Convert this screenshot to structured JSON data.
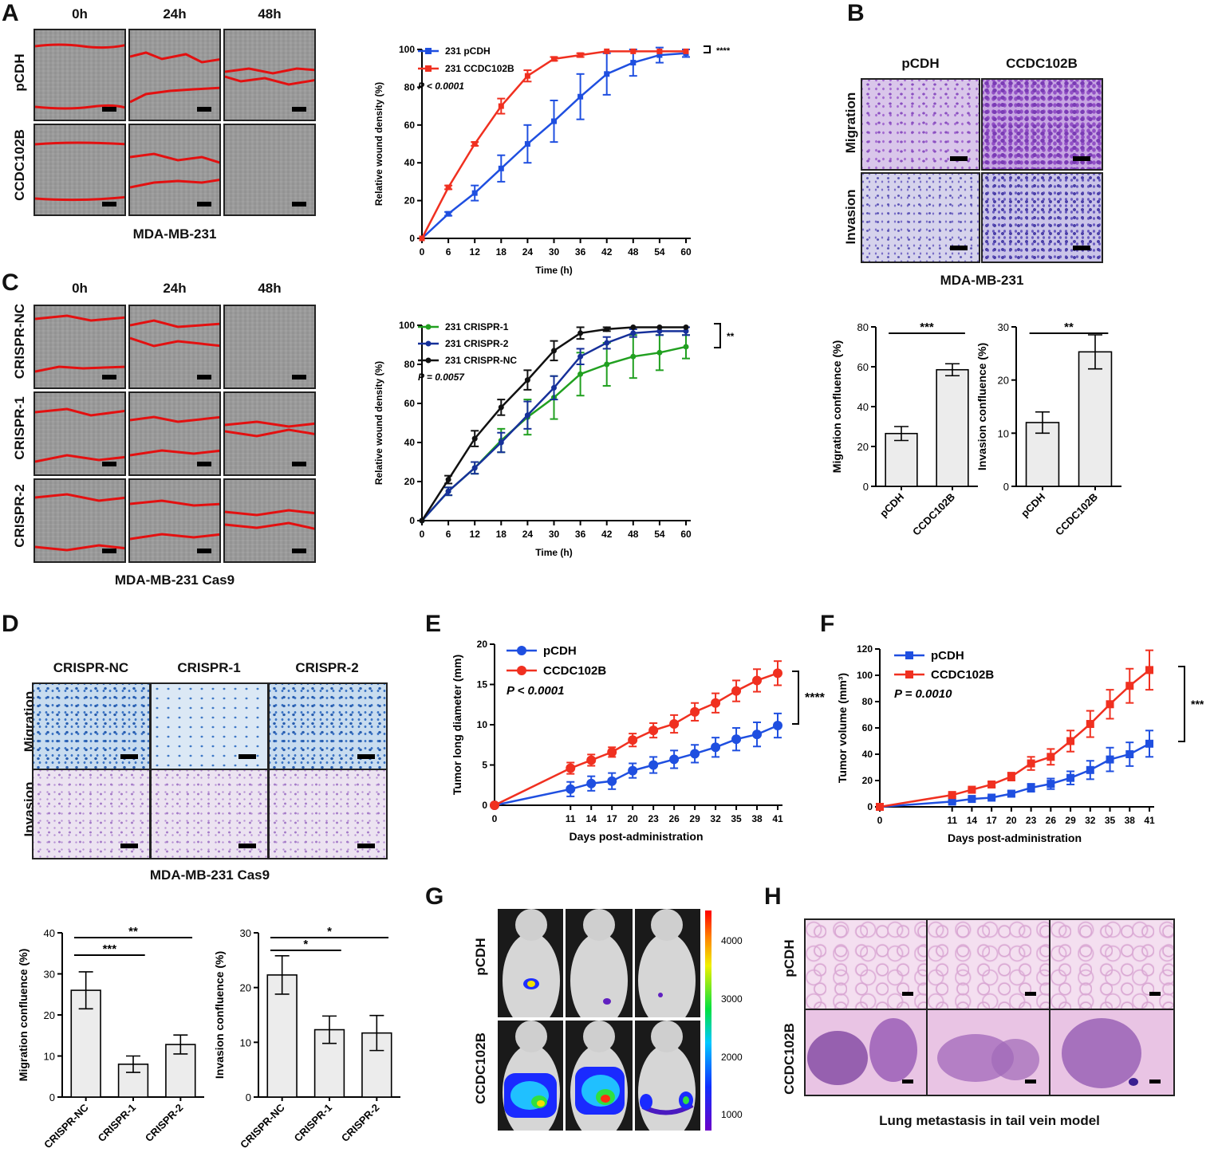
{
  "panels": {
    "A": "A",
    "B": "B",
    "C": "C",
    "D": "D",
    "E": "E",
    "F": "F",
    "G": "G",
    "H": "H"
  },
  "panelA": {
    "times": [
      "0h",
      "24h",
      "48h"
    ],
    "rows": [
      "pCDH",
      "CCDC102B"
    ],
    "caption": "MDA-MB-231"
  },
  "panelB": {
    "cols": [
      "pCDH",
      "CCDC102B"
    ],
    "rows": [
      "Migration",
      "Invasion"
    ],
    "caption": "MDA-MB-231"
  },
  "panelC": {
    "times": [
      "0h",
      "24h",
      "48h"
    ],
    "rows": [
      "CRISPR-NC",
      "CRISPR-1",
      "CRISPR-2"
    ],
    "caption": "MDA-MB-231 Cas9"
  },
  "panelD": {
    "cols": [
      "CRISPR-NC",
      "CRISPR-1",
      "CRISPR-2"
    ],
    "rows": [
      "Migration",
      "Invasion"
    ],
    "caption": "MDA-MB-231 Cas9"
  },
  "panelG": {
    "rows": [
      "pCDH",
      "CCDC102B"
    ],
    "colorbar_ticks": [
      "4000",
      "3000",
      "2000",
      "1000"
    ]
  },
  "panelH": {
    "rows": [
      "pCDH",
      "CCDC102B"
    ],
    "caption": "Lung metastasis in tail vein model"
  },
  "chart_data": [
    {
      "id": "A-line",
      "type": "line",
      "title": "",
      "xlabel": "Time (h)",
      "ylabel": "Relative wound density (%)",
      "ylim": [
        0,
        100
      ],
      "x": [
        0,
        6,
        12,
        18,
        24,
        30,
        36,
        42,
        48,
        54,
        60
      ],
      "yticks": [
        0,
        20,
        40,
        60,
        80,
        100
      ],
      "series": [
        {
          "name": "231 pCDH",
          "color": "#1f4fe0",
          "values": [
            0,
            13,
            24,
            37,
            50,
            62,
            75,
            87,
            93,
            97,
            98
          ],
          "err": [
            0,
            1,
            4,
            7,
            10,
            11,
            12,
            11,
            7,
            4,
            2
          ]
        },
        {
          "name": "231 CCDC102B",
          "color": "#f03020",
          "values": [
            0,
            27,
            50,
            70,
            86,
            95,
            97,
            99,
            99,
            99,
            99
          ],
          "err": [
            0,
            1,
            1,
            4,
            3,
            1,
            1,
            0,
            0,
            0,
            0
          ]
        }
      ],
      "pvalue": "P < 0.0001",
      "sig": "****"
    },
    {
      "id": "C-line",
      "type": "line",
      "title": "",
      "xlabel": "Time (h)",
      "ylabel": "Relative wound density (%)",
      "ylim": [
        0,
        100
      ],
      "x": [
        0,
        6,
        12,
        18,
        24,
        30,
        36,
        42,
        48,
        54,
        60
      ],
      "yticks": [
        0,
        20,
        40,
        60,
        80,
        100
      ],
      "series": [
        {
          "name": "231 CRISPR-1",
          "color": "#21a020",
          "values": [
            0,
            15,
            27,
            41,
            53,
            63,
            75,
            80,
            84,
            86,
            89
          ],
          "err": [
            0,
            2,
            3,
            6,
            9,
            11,
            11,
            11,
            11,
            9,
            6
          ]
        },
        {
          "name": "231 CRISPR-2",
          "color": "#16309a",
          "values": [
            0,
            15,
            27,
            40,
            54,
            68,
            84,
            91,
            96,
            97,
            97
          ],
          "err": [
            0,
            2,
            3,
            5,
            7,
            6,
            4,
            3,
            2,
            2,
            2
          ]
        },
        {
          "name": "231 CRISPR-NC",
          "color": "#111111",
          "values": [
            0,
            21,
            42,
            58,
            72,
            87,
            96,
            98,
            99,
            99,
            99
          ],
          "err": [
            0,
            2,
            4,
            4,
            5,
            5,
            3,
            1,
            0,
            0,
            0
          ]
        }
      ],
      "pvalue": "P = 0.0057",
      "sig": "**"
    },
    {
      "id": "B-mig",
      "type": "bar",
      "categories": [
        "pCDH",
        "CCDC102B"
      ],
      "values": [
        26.5,
        58.5
      ],
      "err": [
        3.5,
        3
      ],
      "ylabel": "Migration confluence (%)",
      "ylim": [
        0,
        80
      ],
      "yticks": [
        0,
        20,
        40,
        60,
        80
      ],
      "sig": [
        {
          "label": "***",
          "from": 0,
          "to": 1
        }
      ]
    },
    {
      "id": "B-inv",
      "type": "bar",
      "categories": [
        "pCDH",
        "CCDC102B"
      ],
      "values": [
        12,
        25.3
      ],
      "err": [
        2,
        3.2
      ],
      "ylabel": "Invasion confluence (%)",
      "ylim": [
        0,
        30
      ],
      "yticks": [
        0,
        10,
        20,
        30
      ],
      "sig": [
        {
          "label": "**",
          "from": 0,
          "to": 1
        }
      ]
    },
    {
      "id": "D-mig",
      "type": "bar",
      "categories": [
        "CRISPR-NC",
        "CRISPR-1",
        "CRISPR-2"
      ],
      "values": [
        26,
        8,
        12.8
      ],
      "err": [
        4.5,
        2,
        2.3
      ],
      "ylabel": "Migration confluence (%)",
      "ylim": [
        0,
        40
      ],
      "yticks": [
        0,
        10,
        20,
        30,
        40
      ],
      "sig": [
        {
          "label": "***",
          "from": 0,
          "to": 1
        },
        {
          "label": "**",
          "from": 0,
          "to": 2
        }
      ]
    },
    {
      "id": "D-inv",
      "type": "bar",
      "categories": [
        "CRISPR-NC",
        "CRISPR-1",
        "CRISPR-2"
      ],
      "values": [
        22.3,
        12.3,
        11.7
      ],
      "err": [
        3.5,
        2.5,
        3.2
      ],
      "ylabel": "Invasion confluence (%)",
      "ylim": [
        0,
        30
      ],
      "yticks": [
        0,
        10,
        20,
        30
      ],
      "sig": [
        {
          "label": "*",
          "from": 0,
          "to": 1
        },
        {
          "label": "*",
          "from": 0,
          "to": 2
        }
      ]
    },
    {
      "id": "E-line",
      "type": "line",
      "xlabel": "Days post-administration",
      "ylabel": "Tumor long diameter (mm)",
      "ylim": [
        0,
        20
      ],
      "x": [
        0,
        11,
        14,
        17,
        20,
        23,
        26,
        29,
        32,
        35,
        38,
        41
      ],
      "yticks": [
        0,
        5,
        10,
        15,
        20
      ],
      "series": [
        {
          "name": "pCDH",
          "color": "#1f4fe0",
          "values": [
            0,
            2,
            2.7,
            3,
            4.3,
            5,
            5.7,
            6.4,
            7.2,
            8.2,
            8.8,
            9.9
          ],
          "err": [
            0,
            0.9,
            0.9,
            1,
            0.9,
            1,
            1.1,
            1.1,
            1.2,
            1.4,
            1.5,
            1.5
          ]
        },
        {
          "name": "CCDC102B",
          "color": "#f03020",
          "values": [
            0,
            4.6,
            5.6,
            6.6,
            8.1,
            9.3,
            10.1,
            11.6,
            12.7,
            14.2,
            15.5,
            16.4
          ],
          "err": [
            0,
            0.7,
            0.7,
            0.6,
            0.8,
            0.9,
            1.1,
            1.1,
            1.2,
            1.3,
            1.4,
            1.5
          ]
        }
      ],
      "pvalue": "P < 0.0001",
      "sig": "****"
    },
    {
      "id": "F-line",
      "type": "line",
      "xlabel": "Days post-administration",
      "ylabel": "Tumor volume (mm³)",
      "ylim": [
        0,
        120
      ],
      "x": [
        0,
        11,
        14,
        17,
        20,
        23,
        26,
        29,
        32,
        35,
        38,
        41
      ],
      "yticks": [
        0,
        20,
        40,
        60,
        80,
        100,
        120
      ],
      "series": [
        {
          "name": "pCDH",
          "color": "#1f4fe0",
          "values": [
            0,
            4,
            6,
            7,
            10,
            14.5,
            17.5,
            22,
            28,
            36,
            40,
            48
          ],
          "err": [
            0,
            1,
            1,
            1,
            2,
            3,
            4,
            5,
            7,
            9,
            9,
            10
          ]
        },
        {
          "name": "CCDC102B",
          "color": "#f03020",
          "values": [
            0,
            9,
            13,
            17,
            23,
            33,
            38,
            50,
            63,
            78,
            92,
            104
          ],
          "err": [
            0,
            1,
            1,
            2,
            3,
            5,
            6,
            8,
            10,
            11,
            13,
            15
          ]
        }
      ],
      "pvalue": "P = 0.0010",
      "sig": "***"
    }
  ]
}
